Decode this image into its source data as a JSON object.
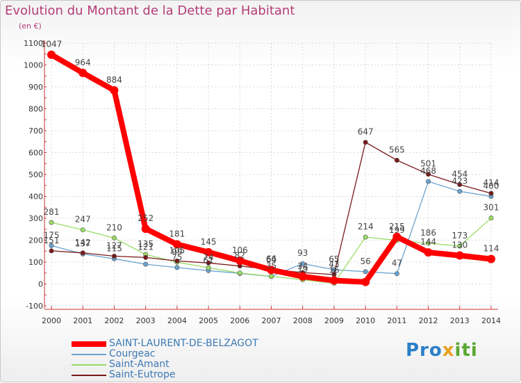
{
  "chart_data": {
    "type": "line",
    "title": "Evolution du Montant de la Dette par Habitant",
    "ylabel": "(en €)",
    "x": [
      "2000",
      "2001",
      "2002",
      "2003",
      "2004",
      "2005",
      "2006",
      "2007",
      "2008",
      "2009",
      "2010",
      "2011",
      "2012",
      "2013",
      "2014"
    ],
    "ylim": [
      -100,
      1100
    ],
    "yticks": [
      "-100",
      "0",
      "100",
      "200",
      "300",
      "400",
      "500",
      "600",
      "700",
      "800",
      "900",
      "1000",
      "1100"
    ],
    "grid": true,
    "legend_position": "bottom-left",
    "series": [
      {
        "name": "SAINT-LAURENT-DE-BELZAGOT",
        "color": "#ff0000",
        "values": [
          1047,
          964,
          884,
          252,
          181,
          145,
          106,
          64,
          34,
          16,
          9,
          215,
          144,
          130,
          114
        ],
        "labels": [
          "1047",
          "964",
          "884",
          "252",
          "181",
          "145",
          "106",
          "64",
          "34",
          "16",
          "",
          "215",
          "144",
          "130",
          "114"
        ]
      },
      {
        "name": "Courgeac",
        "color": "#6aa3d0",
        "values": [
          175,
          137,
          115,
          90,
          75,
          61,
          48,
          34,
          93,
          65,
          56,
          47,
          468,
          423,
          400
        ],
        "labels": [
          "175",
          "137",
          "115",
          "",
          "75",
          "61",
          "",
          "",
          "93",
          "65",
          "56",
          "47",
          "468",
          "423",
          "400"
        ]
      },
      {
        "name": "Saint-Amant",
        "color": "#99dd66",
        "values": [
          281,
          247,
          210,
          135,
          99,
          74,
          50,
          35,
          19,
          3,
          214,
          199,
          186,
          173,
          301
        ],
        "labels": [
          "281",
          "247",
          "210",
          "135",
          "99",
          "74",
          "",
          "35",
          "19",
          "3",
          "214",
          "199",
          "186",
          "173",
          "301"
        ]
      },
      {
        "name": "Saint-Eutrope",
        "color": "#7a1818",
        "values": [
          151,
          142,
          127,
          121,
          105,
          96,
          82,
          66,
          52,
          43,
          647,
          565,
          501,
          454,
          414
        ],
        "labels": [
          "151",
          "142",
          "127",
          "121",
          "105",
          "",
          "82",
          "66",
          "",
          "43",
          "647",
          "565",
          "501",
          "454",
          "414"
        ]
      }
    ]
  },
  "logo_text": "Proxiti"
}
